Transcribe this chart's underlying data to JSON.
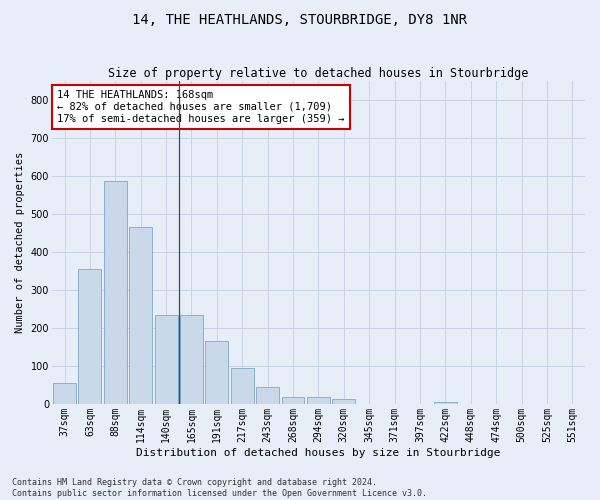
{
  "title": "14, THE HEATHLANDS, STOURBRIDGE, DY8 1NR",
  "subtitle": "Size of property relative to detached houses in Stourbridge",
  "xlabel": "Distribution of detached houses by size in Stourbridge",
  "ylabel": "Number of detached properties",
  "bar_labels": [
    "37sqm",
    "63sqm",
    "88sqm",
    "114sqm",
    "140sqm",
    "165sqm",
    "191sqm",
    "217sqm",
    "243sqm",
    "268sqm",
    "294sqm",
    "320sqm",
    "345sqm",
    "371sqm",
    "397sqm",
    "422sqm",
    "448sqm",
    "474sqm",
    "500sqm",
    "525sqm",
    "551sqm"
  ],
  "bar_values": [
    55,
    355,
    585,
    465,
    235,
    235,
    165,
    95,
    45,
    18,
    18,
    12,
    0,
    0,
    0,
    5,
    0,
    0,
    0,
    0,
    0
  ],
  "bar_color": "#c9d9ea",
  "bar_edge_color": "#7aaaca",
  "property_line_bin": 5,
  "annotation_line1": "14 THE HEATHLANDS: 168sqm",
  "annotation_line2": "← 82% of detached houses are smaller (1,709)",
  "annotation_line3": "17% of semi-detached houses are larger (359) →",
  "annotation_box_color": "white",
  "annotation_box_edge_color": "#cc0000",
  "ylim": [
    0,
    850
  ],
  "yticks": [
    0,
    100,
    200,
    300,
    400,
    500,
    600,
    700,
    800
  ],
  "grid_color": "#c8d4e4",
  "bg_color": "#e8eef8",
  "footer_line1": "Contains HM Land Registry data © Crown copyright and database right 2024.",
  "footer_line2": "Contains public sector information licensed under the Open Government Licence v3.0.",
  "title_fontsize": 10,
  "subtitle_fontsize": 8.5,
  "xlabel_fontsize": 8,
  "ylabel_fontsize": 7.5,
  "tick_fontsize": 7,
  "annotation_fontsize": 7.5,
  "footer_fontsize": 6
}
